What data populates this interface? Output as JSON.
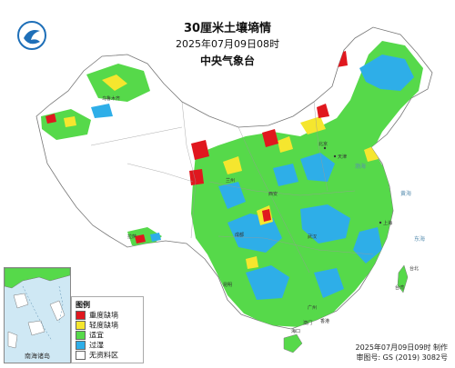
{
  "title": "30厘米土壤墒情",
  "timestamp": "2025年07月09日08时",
  "agency": "中央气象台",
  "inset_label": "南海诸岛",
  "legend": {
    "title": "图例",
    "items": [
      {
        "label": "重度缺墒",
        "color": "#e0171e"
      },
      {
        "label": "轻度缺墒",
        "color": "#f5e62e"
      },
      {
        "label": "适宜",
        "color": "#56d94a"
      },
      {
        "label": "过湿",
        "color": "#2eaee8"
      },
      {
        "label": "无资料区",
        "color": "#ffffff"
      }
    ]
  },
  "footer": {
    "made": "2025年07月09日09时 制作",
    "approval": "审图号: GS (2019) 3082号"
  },
  "places": {
    "beijing": "北京",
    "tianjin": "天津",
    "shanghai": "上海",
    "taibei": "台北",
    "xianggang": "香港",
    "aomen": "澳门",
    "haikou": "海口",
    "kunming": "昆明",
    "lasa": "拉萨",
    "wulumuqi": "乌鲁木齐",
    "chengdu": "成都",
    "wuhan": "武汉",
    "guangzhou": "广州",
    "xian": "西安",
    "lanzhou": "兰州",
    "taiwan": "台湾"
  },
  "seas": {
    "bohai": "渤海",
    "huanghai": "黄海",
    "donghai": "东海"
  },
  "colors": {
    "land_background": "#ffffff",
    "border": "#888888",
    "sea": "#cfe8f4"
  }
}
